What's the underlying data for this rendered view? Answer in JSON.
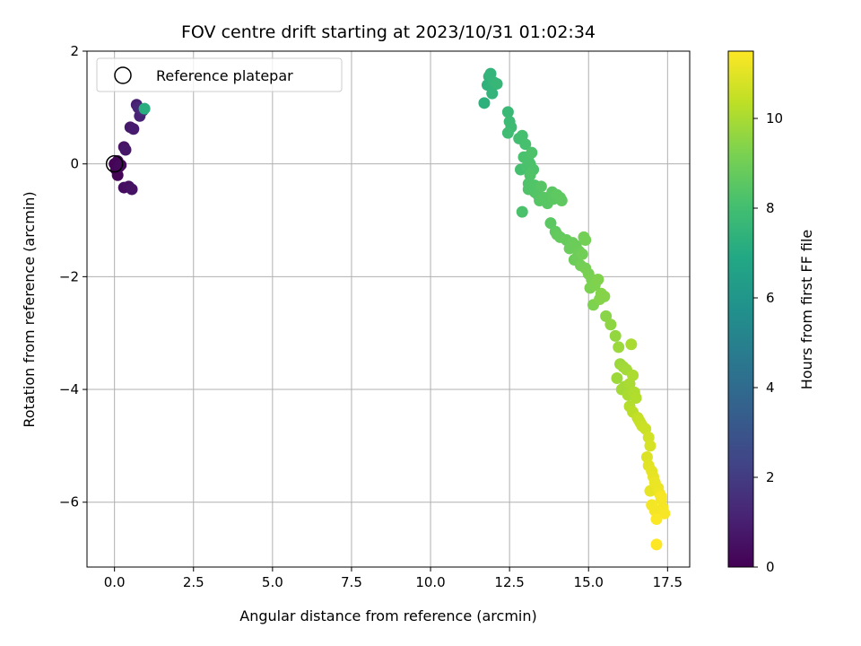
{
  "chart_data": {
    "type": "scatter",
    "title": "FOV centre drift starting at 2023/10/31 01:02:34",
    "xlabel": "Angular distance from reference (arcmin)",
    "ylabel": "Rotation from reference (arcmin)",
    "xlim": [
      -0.87,
      18.2
    ],
    "ylim": [
      -7.15,
      2.0
    ],
    "xticks": [
      0.0,
      2.5,
      5.0,
      7.5,
      10.0,
      12.5,
      15.0,
      17.5
    ],
    "xtick_labels": [
      "0.0",
      "2.5",
      "5.0",
      "7.5",
      "10.0",
      "12.5",
      "15.0",
      "17.5"
    ],
    "yticks": [
      2,
      0,
      -2,
      -4,
      -6
    ],
    "ytick_labels": [
      "2",
      "0",
      "−2",
      "−4",
      "−6"
    ],
    "grid": true,
    "legend": {
      "placement": "top-left",
      "entries": [
        "Reference platepar"
      ]
    },
    "colorbar": {
      "label": "Hours from first FF file",
      "range": [
        0,
        11.5
      ],
      "ticks": [
        0,
        2,
        4,
        6,
        8,
        10
      ],
      "tick_labels": [
        "0",
        "2",
        "4",
        "6",
        "8",
        "10"
      ],
      "colormap": "viridis"
    },
    "reference_point": {
      "x": 0.0,
      "y": 0.0
    },
    "series": [
      {
        "x": [
          0.0,
          0.05,
          0.1,
          0.15,
          0.2,
          0.1,
          0.3,
          0.45,
          0.55,
          0.3,
          0.35,
          0.5,
          0.6,
          0.7,
          0.8,
          0.75,
          0.9,
          0.95,
          11.7,
          11.8,
          11.9,
          12.0,
          12.1,
          11.95,
          11.85,
          12.45,
          12.5,
          12.55,
          12.45,
          12.8,
          12.9,
          13.0,
          12.95,
          13.1,
          13.2,
          12.85,
          13.05,
          13.15,
          13.25,
          13.1,
          12.9,
          13.1,
          13.3,
          13.4,
          13.5,
          13.6,
          13.3,
          13.15,
          13.45,
          13.7,
          13.85,
          13.9,
          14.0,
          14.1,
          14.15,
          13.8,
          13.95,
          14.0,
          14.1,
          14.3,
          14.5,
          14.6,
          14.7,
          14.8,
          14.9,
          14.4,
          14.55,
          14.85,
          14.75,
          14.65,
          14.9,
          15.0,
          15.1,
          15.2,
          15.05,
          15.3,
          15.35,
          15.5,
          15.15,
          15.4,
          15.55,
          15.7,
          15.85,
          15.95,
          16.1,
          16.2,
          16.35,
          16.4,
          16.3,
          15.9,
          16.05,
          16.25,
          16.45,
          16.5,
          16.0,
          16.15,
          16.3,
          16.4,
          16.55,
          16.6,
          16.7,
          16.8,
          16.9,
          16.95,
          16.65,
          16.85,
          16.9,
          17.0,
          17.05,
          17.1,
          17.2,
          17.25,
          17.3,
          17.35,
          17.4,
          17.15,
          17.0,
          16.95,
          17.1,
          17.3,
          17.15
        ],
        "y": [
          0.0,
          -0.1,
          -0.2,
          -0.05,
          -0.02,
          0.05,
          -0.42,
          -0.4,
          -0.45,
          0.3,
          0.25,
          0.65,
          0.62,
          1.05,
          0.85,
          1.0,
          0.95,
          0.98,
          1.08,
          1.4,
          1.6,
          1.45,
          1.42,
          1.25,
          1.55,
          0.92,
          0.75,
          0.65,
          0.55,
          0.45,
          0.5,
          0.35,
          0.12,
          0.05,
          0.2,
          -0.1,
          -0.05,
          0.0,
          -0.1,
          -0.35,
          -0.85,
          -0.45,
          -0.5,
          -0.55,
          -0.4,
          -0.6,
          -0.38,
          -0.2,
          -0.65,
          -0.7,
          -0.5,
          -0.62,
          -0.55,
          -0.6,
          -0.65,
          -1.05,
          -1.2,
          -1.25,
          -1.3,
          -1.35,
          -1.4,
          -1.45,
          -1.55,
          -1.6,
          -1.35,
          -1.5,
          -1.7,
          -1.3,
          -1.8,
          -1.65,
          -1.85,
          -1.95,
          -2.05,
          -2.15,
          -2.2,
          -2.05,
          -2.4,
          -2.35,
          -2.5,
          -2.3,
          -2.7,
          -2.85,
          -3.05,
          -3.25,
          -3.6,
          -3.65,
          -3.2,
          -3.75,
          -3.9,
          -3.8,
          -4.0,
          -4.1,
          -4.05,
          -4.15,
          -3.55,
          -3.95,
          -4.3,
          -4.4,
          -4.5,
          -4.55,
          -4.65,
          -4.7,
          -4.85,
          -5.0,
          -4.6,
          -5.2,
          -5.35,
          -5.45,
          -5.55,
          -5.65,
          -5.75,
          -5.85,
          -5.95,
          -6.1,
          -6.2,
          -6.3,
          -6.05,
          -5.8,
          -6.15,
          -5.9,
          -6.75
        ],
        "hours": [
          0.05,
          0.1,
          0.15,
          0.2,
          0.25,
          0.1,
          0.4,
          0.5,
          0.55,
          0.6,
          0.7,
          0.8,
          0.9,
          1.0,
          1.1,
          1.2,
          1.4,
          7.2,
          7.3,
          7.4,
          7.5,
          7.55,
          7.6,
          7.5,
          7.45,
          7.7,
          7.8,
          7.85,
          7.9,
          8.0,
          8.05,
          8.1,
          8.15,
          8.2,
          8.25,
          8.1,
          8.15,
          8.2,
          8.25,
          8.3,
          8.2,
          8.3,
          8.35,
          8.4,
          8.45,
          8.5,
          8.35,
          8.3,
          8.45,
          8.5,
          8.55,
          8.55,
          8.6,
          8.6,
          8.65,
          8.55,
          8.6,
          8.7,
          8.75,
          8.8,
          8.85,
          8.9,
          8.95,
          9.0,
          9.05,
          8.85,
          8.9,
          9.05,
          9.0,
          8.95,
          9.1,
          9.15,
          9.2,
          9.25,
          9.2,
          9.3,
          9.35,
          9.4,
          9.25,
          9.35,
          9.45,
          9.55,
          9.65,
          9.75,
          9.85,
          9.9,
          10.0,
          10.05,
          10.0,
          9.8,
          9.9,
          10.0,
          10.1,
          10.15,
          9.75,
          9.9,
          10.2,
          10.3,
          10.4,
          10.5,
          10.55,
          10.6,
          10.7,
          10.8,
          10.5,
          10.9,
          11.0,
          11.05,
          11.1,
          11.15,
          11.2,
          11.25,
          11.3,
          11.35,
          11.4,
          11.45,
          11.3,
          11.1,
          11.35,
          11.4,
          11.5
        ]
      }
    ]
  }
}
